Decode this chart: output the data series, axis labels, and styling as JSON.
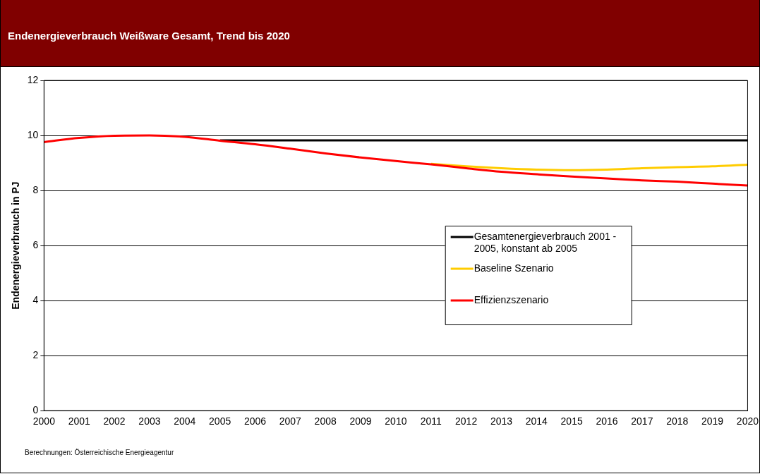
{
  "chart_data": {
    "type": "line",
    "title": "Endenergieverbrauch Weißware Gesamt, Trend bis 2020",
    "ylabel": "Endenergieverbrauch in PJ",
    "categories": [
      "2000",
      "2001",
      "2002",
      "2003",
      "2004",
      "2005",
      "2006",
      "2007",
      "2008",
      "2009",
      "2010",
      "2011",
      "2012",
      "2013",
      "2014",
      "2015",
      "2016",
      "2017",
      "2018",
      "2019",
      "2020"
    ],
    "series": [
      {
        "name": "Gesamtenergieverbrauch 2001 - 2005, konstant ab 2005",
        "color": "#000000",
        "values": [
          null,
          null,
          null,
          null,
          null,
          9.82,
          9.82,
          9.82,
          9.82,
          9.82,
          9.82,
          9.82,
          9.82,
          9.82,
          9.82,
          9.82,
          9.82,
          9.82,
          9.82,
          9.82,
          9.82
        ]
      },
      {
        "name": "Baseline Szenario",
        "color": "#ffcc00",
        "values": [
          null,
          null,
          null,
          null,
          null,
          null,
          null,
          null,
          null,
          null,
          null,
          8.97,
          8.88,
          8.81,
          8.76,
          8.74,
          8.76,
          8.81,
          8.85,
          8.88,
          8.94
        ]
      },
      {
        "name": "Effizienzszenario",
        "color": "#ff0000",
        "values": [
          9.76,
          9.91,
          9.99,
          10.0,
          9.95,
          9.81,
          9.68,
          9.52,
          9.35,
          9.2,
          9.07,
          8.95,
          8.81,
          8.68,
          8.59,
          8.51,
          8.44,
          8.37,
          8.32,
          8.25,
          8.18
        ]
      }
    ],
    "ylim": [
      0,
      12
    ],
    "yticks": [
      0,
      2,
      4,
      6,
      8,
      10,
      12
    ],
    "grid": "y",
    "legend": "right",
    "marker": "none",
    "line_style": "solid",
    "annotations": [
      "Berechnungen: Österreichische Energieagentur"
    ]
  }
}
